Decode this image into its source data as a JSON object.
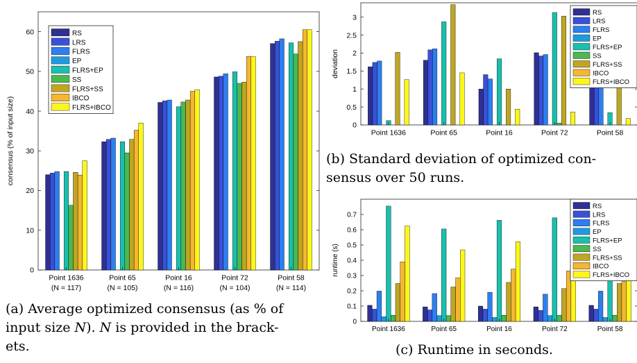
{
  "chart_data": [
    {
      "id": "a",
      "type": "bar",
      "ylabel": "consensus (% of input size)",
      "xlabel": "",
      "ylim": [
        0,
        65
      ],
      "yticks": [
        0,
        10,
        20,
        30,
        40,
        50,
        60
      ],
      "grid": false,
      "legend_position": "top-left",
      "categories": [
        "Point 1636",
        "Point 65",
        "Point 16",
        "Point 72",
        "Point 58"
      ],
      "category_sublabels": [
        "(N = 117)",
        "(N = 105)",
        "(N = 116)",
        "(N = 104)",
        "(N = 114)"
      ],
      "series": [
        {
          "name": "RS",
          "values": [
            24.0,
            32.3,
            42.2,
            48.6,
            57.0
          ]
        },
        {
          "name": "LRS",
          "values": [
            24.4,
            32.9,
            42.6,
            48.8,
            57.6
          ]
        },
        {
          "name": "FLRS",
          "values": [
            24.8,
            33.2,
            42.8,
            49.4,
            58.2
          ]
        },
        {
          "name": "EP",
          "values": [
            0,
            0,
            0,
            0,
            0
          ]
        },
        {
          "name": "FLRS+EP",
          "values": [
            24.8,
            32.3,
            41.1,
            49.9,
            57.2
          ]
        },
        {
          "name": "SS",
          "values": [
            16.3,
            29.5,
            42.3,
            47.0,
            54.4
          ]
        },
        {
          "name": "FLRS+SS",
          "values": [
            24.6,
            32.9,
            42.8,
            47.3,
            57.5
          ]
        },
        {
          "name": "IBCO",
          "values": [
            23.9,
            35.2,
            45.0,
            53.8,
            60.5
          ]
        },
        {
          "name": "FLRS+IBCO",
          "values": [
            27.5,
            37.0,
            45.4,
            53.7,
            60.5
          ]
        }
      ],
      "caption_parts": [
        "(a) Average optimized consensus (as % of",
        "input size ",
        "N",
        "). ",
        "N",
        " is provided in the brack-",
        "ets."
      ]
    },
    {
      "id": "b",
      "type": "bar",
      "ylabel": "deviation",
      "xlabel": "",
      "ylim": [
        0,
        3.4
      ],
      "yticks": [
        0,
        0.5,
        1,
        1.5,
        2,
        2.5,
        3
      ],
      "grid": false,
      "legend_position": "top-right",
      "categories": [
        "Point 1636",
        "Point 65",
        "Point 16",
        "Point 72",
        "Point 58"
      ],
      "series": [
        {
          "name": "RS",
          "values": [
            1.62,
            1.8,
            1.0,
            2.01,
            1.38
          ]
        },
        {
          "name": "LRS",
          "values": [
            1.74,
            2.09,
            1.4,
            1.92,
            1.62
          ]
        },
        {
          "name": "FLRS",
          "values": [
            1.78,
            2.12,
            1.28,
            1.96,
            1.82
          ]
        },
        {
          "name": "EP",
          "values": [
            0,
            0,
            0,
            0,
            0
          ]
        },
        {
          "name": "FLRS+EP",
          "values": [
            0.12,
            2.87,
            1.84,
            3.13,
            0.34
          ]
        },
        {
          "name": "SS",
          "values": [
            0,
            0,
            0,
            0.05,
            0
          ]
        },
        {
          "name": "FLRS+SS",
          "values": [
            2.02,
            3.35,
            1.0,
            3.03,
            1.11
          ]
        },
        {
          "name": "IBCO",
          "values": [
            0,
            0,
            0,
            0,
            0
          ]
        },
        {
          "name": "FLRS+IBCO",
          "values": [
            1.26,
            1.45,
            0.44,
            0.36,
            0.18
          ]
        }
      ],
      "caption_lines": [
        "(b) Standard deviation of optimized con-",
        "sensus over 50 runs."
      ]
    },
    {
      "id": "c",
      "type": "bar",
      "ylabel": "runtime (s)",
      "xlabel": "",
      "ylim": [
        0,
        0.8
      ],
      "yticks": [
        0,
        0.1,
        0.2,
        0.3,
        0.4,
        0.5,
        0.6,
        0.7
      ],
      "grid": false,
      "legend_position": "top-right",
      "categories": [
        "Point 1636",
        "Point 65",
        "Point 16",
        "Point 72",
        "Point 58"
      ],
      "series": [
        {
          "name": "RS",
          "values": [
            0.105,
            0.095,
            0.1,
            0.095,
            0.105
          ]
        },
        {
          "name": "LRS",
          "values": [
            0.08,
            0.075,
            0.08,
            0.072,
            0.08
          ]
        },
        {
          "name": "FLRS",
          "values": [
            0.198,
            0.182,
            0.19,
            0.178,
            0.198
          ]
        },
        {
          "name": "EP",
          "values": [
            0.03,
            0.038,
            0.025,
            0.038,
            0.025
          ]
        },
        {
          "name": "FLRS+EP",
          "values": [
            0.755,
            0.605,
            0.662,
            0.678,
            0.762
          ]
        },
        {
          "name": "SS",
          "values": [
            0.04,
            0.038,
            0.04,
            0.04,
            0.04
          ]
        },
        {
          "name": "FLRS+SS",
          "values": [
            0.248,
            0.225,
            0.255,
            0.215,
            0.248
          ]
        },
        {
          "name": "IBCO",
          "values": [
            0.39,
            0.285,
            0.342,
            0.33,
            0.26
          ]
        },
        {
          "name": "FLRS+IBCO",
          "values": [
            0.625,
            0.468,
            0.522,
            0.48,
            0.46
          ]
        }
      ],
      "caption_lines": [
        "(c) Runtime in seconds."
      ]
    }
  ],
  "series_colors": [
    "#2e3192",
    "#3a50d8",
    "#2d7ff0",
    "#1e9be0",
    "#19c0ad",
    "#4bb850",
    "#bfa623",
    "#f5b732",
    "#fcf719"
  ]
}
